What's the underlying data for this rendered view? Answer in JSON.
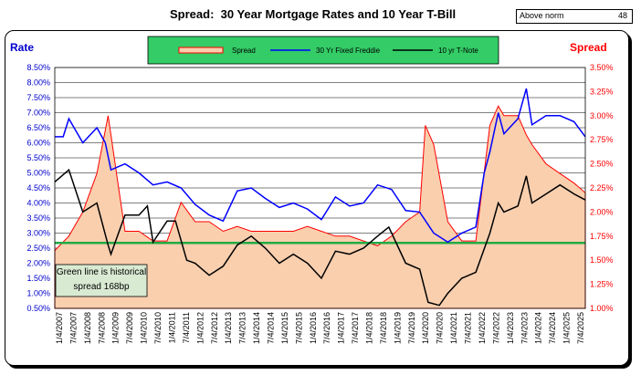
{
  "header": {
    "title": "Spread:  30 Year Mortgage Rates and 10 Year T-Bill",
    "norm_label": "Above norm",
    "norm_value": "48"
  },
  "colors": {
    "spread_fill": "#f9cfae",
    "spread_line": "#ff0000",
    "freddie": "#0000ff",
    "tnote": "#000000",
    "norm_line": "#22aa44",
    "legend_bg": "#33cc66",
    "note_bg": "#d9ead3",
    "left_axis_label": "#0000cc",
    "right_axis_label": "#ff0000"
  },
  "chart_data": {
    "type": "line",
    "left_axis": {
      "label": "Rate",
      "ylim": [
        0.5,
        8.5
      ],
      "ticks": [
        "0.50%",
        "1.00%",
        "1.50%",
        "2.00%",
        "2.50%",
        "3.00%",
        "3.50%",
        "4.00%",
        "4.50%",
        "5.00%",
        "5.50%",
        "6.00%",
        "6.50%",
        "7.00%",
        "7.50%",
        "8.00%",
        "8.50%"
      ]
    },
    "right_axis": {
      "label": "Spread",
      "ylim": [
        1.0,
        3.5
      ],
      "ticks": [
        "1.00%",
        "1.25%",
        "1.50%",
        "1.75%",
        "2.00%",
        "2.25%",
        "2.50%",
        "2.75%",
        "3.00%",
        "3.25%",
        "3.50%"
      ]
    },
    "x_ticks": [
      "1/4/2007",
      "7/4/2007",
      "1/4/2008",
      "7/4/2008",
      "1/4/2009",
      "7/4/2009",
      "1/4/2010",
      "7/4/2010",
      "1/4/2011",
      "7/4/2011",
      "1/4/2012",
      "7/4/2012",
      "1/4/2013",
      "7/4/2013",
      "1/4/2014",
      "7/4/2014",
      "1/4/2015",
      "7/4/2015",
      "1/4/2016",
      "7/4/2016",
      "1/4/2017",
      "7/4/2017",
      "1/4/2018",
      "7/4/2018",
      "1/4/2019",
      "7/4/2019",
      "1/4/2020",
      "7/4/2020",
      "1/4/2021",
      "7/4/2021",
      "1/4/2022",
      "7/4/2022",
      "1/4/2023",
      "7/4/2023",
      "1/4/2024",
      "7/4/2024",
      "1/4/2025",
      "7/4/2025"
    ],
    "x_range": [
      2007.0,
      2025.9
    ],
    "grid": true,
    "legend_position": "top-center",
    "norm_spread": 1.68,
    "annotation": "Green line is historical spread 168bp",
    "series": [
      {
        "name": "Spread",
        "axis": "right",
        "style": "area",
        "x": [
          2007.0,
          2007.5,
          2008.0,
          2008.5,
          2008.9,
          2009.0,
          2009.3,
          2009.5,
          2010.0,
          2010.5,
          2011.0,
          2011.5,
          2012.0,
          2012.5,
          2013.0,
          2013.5,
          2014.0,
          2014.5,
          2015.0,
          2015.5,
          2016.0,
          2016.5,
          2017.0,
          2017.5,
          2018.0,
          2018.5,
          2019.0,
          2019.5,
          2020.0,
          2020.2,
          2020.5,
          2021.0,
          2021.5,
          2022.0,
          2022.5,
          2022.8,
          2023.0,
          2023.5,
          2023.8,
          2024.0,
          2024.5,
          2025.0,
          2025.5,
          2025.9
        ],
        "y": [
          1.6,
          1.75,
          2.0,
          2.4,
          3.0,
          2.8,
          2.2,
          1.8,
          1.8,
          1.7,
          1.7,
          2.1,
          1.9,
          1.9,
          1.8,
          1.85,
          1.8,
          1.8,
          1.8,
          1.8,
          1.85,
          1.8,
          1.75,
          1.75,
          1.7,
          1.65,
          1.75,
          1.9,
          2.0,
          2.9,
          2.7,
          1.9,
          1.7,
          1.7,
          2.9,
          3.1,
          3.0,
          3.0,
          2.8,
          2.7,
          2.5,
          2.4,
          2.3,
          2.2
        ]
      },
      {
        "name": "30 Yr Fixed Freddie",
        "axis": "left",
        "style": "line",
        "x": [
          2007.0,
          2007.3,
          2007.5,
          2008.0,
          2008.5,
          2008.8,
          2009.0,
          2009.5,
          2010.0,
          2010.5,
          2011.0,
          2011.5,
          2012.0,
          2012.5,
          2013.0,
          2013.5,
          2014.0,
          2014.5,
          2015.0,
          2015.5,
          2016.0,
          2016.5,
          2017.0,
          2017.5,
          2018.0,
          2018.5,
          2019.0,
          2019.5,
          2020.0,
          2020.5,
          2021.0,
          2021.5,
          2022.0,
          2022.3,
          2022.5,
          2022.8,
          2023.0,
          2023.5,
          2023.8,
          2024.0,
          2024.5,
          2025.0,
          2025.5,
          2025.9
        ],
        "y": [
          6.2,
          6.2,
          6.8,
          6.0,
          6.5,
          6.0,
          5.1,
          5.3,
          5.0,
          4.6,
          4.7,
          4.5,
          3.95,
          3.6,
          3.4,
          4.4,
          4.5,
          4.15,
          3.85,
          4.0,
          3.8,
          3.45,
          4.2,
          3.9,
          4.0,
          4.6,
          4.45,
          3.75,
          3.7,
          3.0,
          2.7,
          3.0,
          3.2,
          5.0,
          5.7,
          7.0,
          6.3,
          6.8,
          7.8,
          6.6,
          6.9,
          6.9,
          6.7,
          6.2
        ]
      },
      {
        "name": "10 yr T-Note",
        "axis": "left",
        "style": "line",
        "x": [
          2007.0,
          2007.5,
          2008.0,
          2008.5,
          2008.9,
          2009.0,
          2009.5,
          2010.0,
          2010.3,
          2010.5,
          2011.0,
          2011.3,
          2011.7,
          2012.0,
          2012.5,
          2013.0,
          2013.5,
          2014.0,
          2014.5,
          2015.0,
          2015.5,
          2016.0,
          2016.5,
          2017.0,
          2017.5,
          2018.0,
          2018.5,
          2018.9,
          2019.5,
          2020.0,
          2020.3,
          2020.7,
          2021.0,
          2021.5,
          2022.0,
          2022.5,
          2022.8,
          2023.0,
          2023.5,
          2023.8,
          2024.0,
          2024.5,
          2025.0,
          2025.5,
          2025.9
        ],
        "y": [
          4.7,
          5.1,
          3.7,
          4.0,
          2.6,
          2.3,
          3.6,
          3.6,
          3.9,
          2.7,
          3.4,
          3.4,
          2.1,
          2.0,
          1.6,
          1.9,
          2.6,
          2.9,
          2.5,
          2.0,
          2.3,
          2.0,
          1.5,
          2.4,
          2.3,
          2.5,
          2.9,
          3.2,
          2.0,
          1.8,
          0.7,
          0.6,
          1.0,
          1.5,
          1.7,
          3.0,
          4.0,
          3.7,
          3.9,
          4.9,
          4.0,
          4.3,
          4.6,
          4.3,
          4.1
        ]
      }
    ]
  }
}
